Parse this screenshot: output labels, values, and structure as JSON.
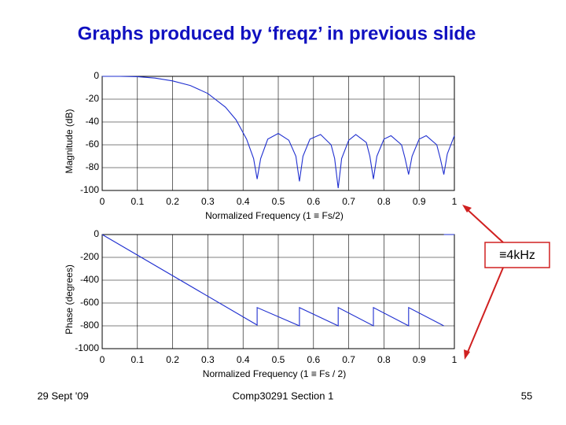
{
  "slide": {
    "title": "Graphs produced by ‘freqz’ in previous slide",
    "annotation": "≡4kHz",
    "footer_left": "29 Sept '09",
    "footer_center": "Comp30291 Section 1",
    "footer_right": "55"
  },
  "chart_data": [
    {
      "type": "line",
      "xlabel": "Normalized Frequency  (1 ≡ Fs/2)",
      "ylabel": "Magnitude (dB)",
      "color": "#1f2fd0",
      "grid": true,
      "xlim": [
        0,
        1
      ],
      "ylim": [
        -100,
        0
      ],
      "xticks": [
        0,
        0.1,
        0.2,
        0.3,
        0.4,
        0.5,
        0.6,
        0.7,
        0.8,
        0.9,
        1
      ],
      "yticks": [
        0,
        -20,
        -40,
        -60,
        -80,
        -100
      ],
      "x": [
        0,
        0.05,
        0.1,
        0.15,
        0.2,
        0.25,
        0.3,
        0.35,
        0.38,
        0.41,
        0.43,
        0.44,
        0.45,
        0.47,
        0.5,
        0.53,
        0.55,
        0.56,
        0.57,
        0.59,
        0.62,
        0.65,
        0.66,
        0.67,
        0.68,
        0.7,
        0.72,
        0.75,
        0.76,
        0.77,
        0.78,
        0.8,
        0.82,
        0.85,
        0.86,
        0.87,
        0.88,
        0.9,
        0.92,
        0.95,
        0.96,
        0.97,
        0.98,
        1
      ],
      "values": [
        0,
        0,
        -0.3,
        -1.5,
        -4,
        -8,
        -15,
        -27,
        -38,
        -55,
        -72,
        -90,
        -72,
        -55,
        -50,
        -56,
        -70,
        -92,
        -70,
        -55,
        -51,
        -60,
        -72,
        -98,
        -72,
        -56,
        -51,
        -58,
        -70,
        -90,
        -70,
        -55,
        -52,
        -60,
        -72,
        -86,
        -70,
        -55,
        -52,
        -60,
        -72,
        -86,
        -68,
        -52
      ]
    },
    {
      "type": "line",
      "xlabel": "Normalized Frequency (1 ≡ Fs / 2)",
      "ylabel": "Phase (degrees)",
      "color": "#1f2fd0",
      "grid": true,
      "xlim": [
        0,
        1
      ],
      "ylim": [
        -1000,
        0
      ],
      "xticks": [
        0,
        0.1,
        0.2,
        0.3,
        0.4,
        0.5,
        0.6,
        0.7,
        0.8,
        0.9,
        1
      ],
      "yticks": [
        0,
        -200,
        -400,
        -600,
        -800,
        -1000
      ],
      "x": [
        0,
        0.44,
        0.44,
        0.56,
        0.56,
        0.67,
        0.67,
        0.77,
        0.77,
        0.87,
        0.87,
        0.97,
        0.97,
        0.97,
        1
      ],
      "values": [
        0,
        -793,
        -640,
        -800,
        -640,
        -800,
        -640,
        -800,
        -640,
        -800,
        -640,
        -800,
        null,
        0,
        0
      ]
    }
  ]
}
